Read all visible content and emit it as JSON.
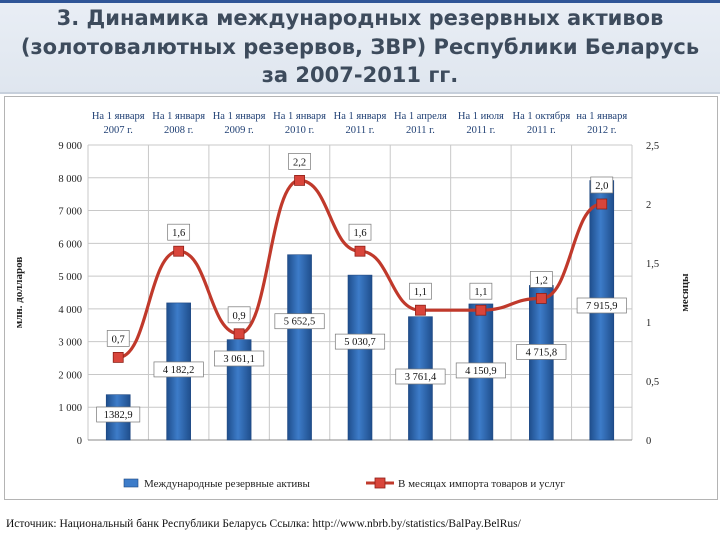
{
  "header": {
    "title_line1": "3. Динамика международных резервных активов",
    "title_line2": "(золотовалютных резервов, ЗВР) Республики Беларусь",
    "title_line3": "за 2007-2011 гг."
  },
  "colors": {
    "bar": "#3d7cc9",
    "line": "#c0392b",
    "marker": "#d9453b"
  },
  "chart_data": {
    "type": "bar",
    "categories": [
      [
        "На 1 января",
        "2007 г."
      ],
      [
        "На 1 января",
        "2008 г."
      ],
      [
        "На 1 января",
        "2009 г."
      ],
      [
        "На 1 января",
        "2010 г."
      ],
      [
        "На 1 января",
        "2011 г."
      ],
      [
        "На 1 апреля",
        "2011 г."
      ],
      [
        "На 1 июля",
        "2011 г."
      ],
      [
        "На 1 октября",
        "2011 г."
      ],
      [
        "на 1 января",
        "2012 г."
      ]
    ],
    "series": [
      {
        "name": "Международные резервные активы",
        "type": "bar",
        "axis": "left",
        "values": [
          1382.9,
          4182.2,
          3061.1,
          5652.5,
          5030.7,
          3761.4,
          4150.9,
          4715.8,
          7915.9
        ],
        "labels": [
          "1382,9",
          "4 182,2",
          "3 061,1",
          "5 652,5",
          "5 030,7",
          "3 761,4",
          "4 150,9",
          "4 715,8",
          "7 915,9"
        ]
      },
      {
        "name": "В месяцах импорта товаров и услуг",
        "type": "line",
        "axis": "right",
        "values": [
          0.7,
          1.6,
          0.9,
          2.2,
          1.6,
          1.1,
          1.1,
          1.2,
          2.0
        ],
        "labels": [
          "0,7",
          "1,6",
          "0,9",
          "2,2",
          "1,6",
          "1,1",
          "1,1",
          "1,2",
          "2,0"
        ]
      }
    ],
    "ylabel": "млн. долларов",
    "y2label": "месяцы",
    "ylim": [
      0,
      9000
    ],
    "y2lim": [
      0,
      2.5
    ],
    "yticks": [
      "0",
      "1 000",
      "2 000",
      "3 000",
      "4 000",
      "5 000",
      "6 000",
      "7 000",
      "8 000",
      "9 000"
    ],
    "y2ticks": [
      "0",
      "0,5",
      "1",
      "1,5",
      "2",
      "2,5"
    ],
    "grid": true,
    "legend": "bottom"
  },
  "source": {
    "text": "Источник: Национальный банк Республики Беларусь  Ссылка: http://www.nbrb.by/statistics/BalPay.BelRus/"
  }
}
